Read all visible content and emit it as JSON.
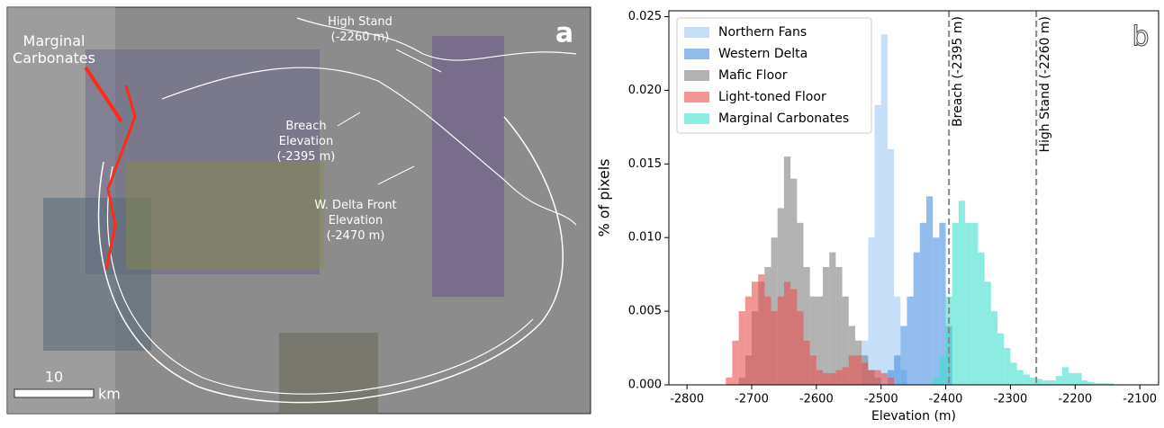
{
  "panel_a": {
    "label": "a",
    "annotations": [
      {
        "lines": [
          "Marginal",
          "Carbonates"
        ]
      },
      {
        "lines": [
          "High Stand",
          "(-2260 m)"
        ]
      },
      {
        "lines": [
          "Breach",
          "Elevation",
          "(-2395 m)"
        ]
      },
      {
        "lines": [
          "W. Delta Front",
          "Elevation",
          "(-2470 m)"
        ]
      }
    ],
    "scale_value": "10",
    "scale_unit": "km"
  },
  "chart_data": {
    "type": "histogram",
    "panel_label": "b",
    "xlabel": "Elevation (m)",
    "ylabel": "% of pixels",
    "xlim": [
      -2828,
      -2071
    ],
    "ylim": [
      0,
      0.0254
    ],
    "xticks": [
      -2800,
      -2700,
      -2600,
      -2500,
      -2400,
      -2300,
      -2200,
      -2100
    ],
    "yticks": [
      {
        "value": 0,
        "label": "0.000"
      },
      {
        "value": 0.005,
        "label": "0.005"
      },
      {
        "value": 0.01,
        "label": "0.010"
      },
      {
        "value": 0.015,
        "label": "0.015"
      },
      {
        "value": 0.02,
        "label": "0.020"
      },
      {
        "value": 0.025,
        "label": "0.025"
      }
    ],
    "legend": "upper left",
    "vlines": [
      {
        "x": -2395,
        "label": "Breach (-2395 m)"
      },
      {
        "x": -2260,
        "label": "High Stand (-2260 m)"
      }
    ],
    "series": [
      {
        "name": "Northern Fans",
        "color": "#9ec9f3",
        "bins": [
          -2530,
          -2520,
          -2510,
          -2500,
          -2490,
          -2480,
          -2470,
          -2460
        ],
        "values": [
          0.003,
          0.01,
          0.019,
          0.0238,
          0.016,
          0.006,
          0.001
        ]
      },
      {
        "name": "Western Delta",
        "color": "#4a90e2",
        "bins": [
          -2490,
          -2480,
          -2470,
          -2460,
          -2450,
          -2440,
          -2430,
          -2420,
          -2410,
          -2400,
          -2390
        ],
        "values": [
          0.001,
          0.002,
          0.004,
          0.006,
          0.009,
          0.011,
          0.0128,
          0.01,
          0.011,
          0.004
        ]
      },
      {
        "name": "Mafic Floor",
        "color": "#7f7f7f",
        "bins": [
          -2720,
          -2710,
          -2700,
          -2690,
          -2680,
          -2670,
          -2660,
          -2650,
          -2640,
          -2630,
          -2620,
          -2610,
          -2600,
          -2590,
          -2580,
          -2570,
          -2560,
          -2550,
          -2540,
          -2530,
          -2520,
          -2510,
          -2500
        ],
        "values": [
          0.0005,
          0.002,
          0.005,
          0.007,
          0.008,
          0.01,
          0.012,
          0.0155,
          0.014,
          0.011,
          0.008,
          0.006,
          0.006,
          0.008,
          0.009,
          0.008,
          0.006,
          0.004,
          0.003,
          0.002,
          0.001,
          0.0005
        ]
      },
      {
        "name": "Light-toned Floor",
        "color": "#e8504f",
        "bins": [
          -2740,
          -2730,
          -2720,
          -2710,
          -2700,
          -2690,
          -2680,
          -2670,
          -2660,
          -2650,
          -2640,
          -2630,
          -2620,
          -2610,
          -2600,
          -2590,
          -2580,
          -2570,
          -2560,
          -2550,
          -2540,
          -2530,
          -2520,
          -2510,
          -2500,
          -2490,
          -2480
        ],
        "values": [
          0.0005,
          0.003,
          0.005,
          0.006,
          0.007,
          0.0075,
          0.006,
          0.005,
          0.006,
          0.007,
          0.0065,
          0.005,
          0.003,
          0.002,
          0.001,
          0.0008,
          0.0008,
          0.001,
          0.0012,
          0.002,
          0.002,
          0.0015,
          0.001,
          0.001,
          0.0008,
          0.0005
        ]
      },
      {
        "name": "Marginal Carbonates",
        "color": "#3fe0cf",
        "bins": [
          -2420,
          -2410,
          -2400,
          -2390,
          -2380,
          -2370,
          -2360,
          -2350,
          -2340,
          -2330,
          -2320,
          -2310,
          -2300,
          -2290,
          -2280,
          -2270,
          -2260,
          -2250,
          -2240,
          -2230,
          -2220,
          -2210,
          -2200,
          -2190,
          -2180,
          -2170,
          -2160,
          -2150,
          -2140
        ],
        "values": [
          0.0005,
          0.002,
          0.006,
          0.011,
          0.0125,
          0.011,
          0.011,
          0.009,
          0.007,
          0.005,
          0.0035,
          0.0025,
          0.0015,
          0.001,
          0.0007,
          0.0005,
          0.0004,
          0.0003,
          0.0003,
          0.0006,
          0.0012,
          0.0008,
          0.0008,
          0.0003,
          0.0002,
          0.0001,
          0.0001,
          0.0001
        ]
      }
    ]
  }
}
